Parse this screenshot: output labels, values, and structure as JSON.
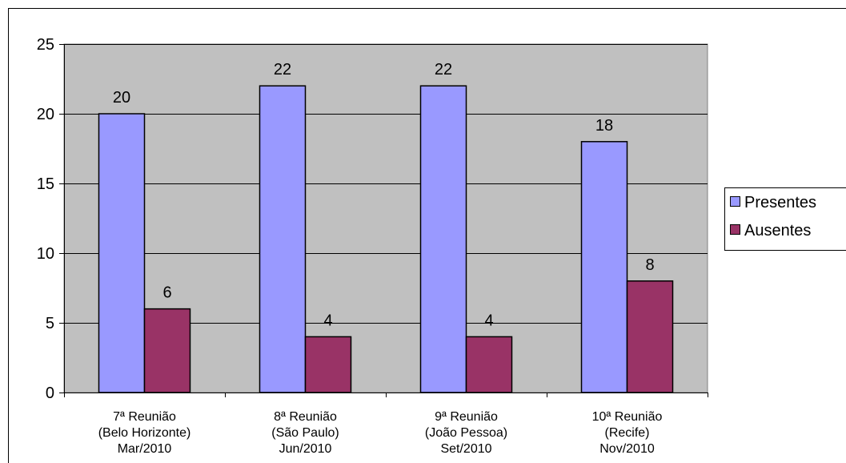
{
  "chart_data": {
    "type": "bar",
    "categories": [
      [
        "7ª Reunião",
        "(Belo Horizonte)",
        "Mar/2010"
      ],
      [
        "8ª Reunião",
        "(São Paulo)",
        "Jun/2010"
      ],
      [
        "9ª Reunião",
        "(João Pessoa)",
        "Set/2010"
      ],
      [
        "10ª Reunião",
        "(Recife)",
        "Nov/2010"
      ]
    ],
    "series": [
      {
        "name": "Presentes",
        "values": [
          20,
          22,
          22,
          18
        ],
        "color": "#9999FF"
      },
      {
        "name": "Ausentes",
        "values": [
          6,
          4,
          4,
          8
        ],
        "color": "#993366"
      }
    ],
    "ylim": [
      0,
      25
    ],
    "yticks": [
      0,
      5,
      10,
      15,
      20,
      25
    ],
    "grid": true,
    "legend_position": "right",
    "plot_background": "#C0C0C0"
  }
}
